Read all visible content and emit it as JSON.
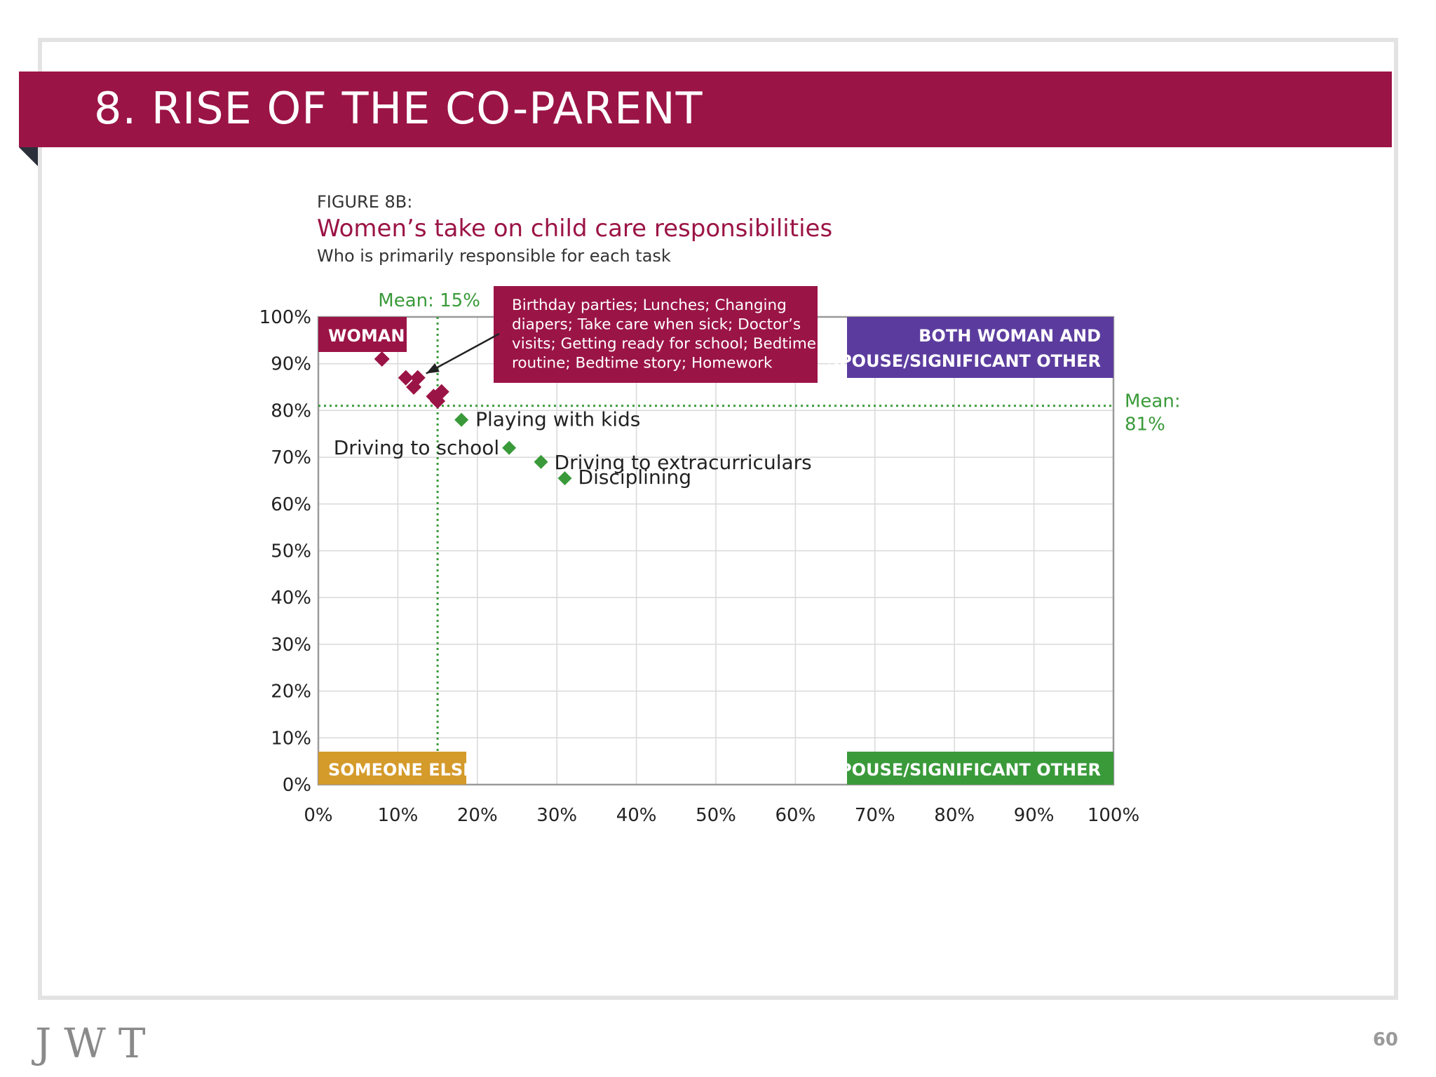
{
  "header": {
    "title": "8. RISE OF THE CO-PARENT"
  },
  "figure": {
    "label": "FIGURE 8B:",
    "title": "Women’s take on child care responsibilities",
    "subtitle": "Who is primarily responsible for each task"
  },
  "footer": {
    "brand": "JWT",
    "page_number": "60"
  },
  "colors": {
    "brand": "#9b1446",
    "green": "#3a9a3a",
    "purple": "#5b3c9e",
    "gold": "#d49a2a",
    "grid": "#d9d9d9"
  },
  "chart_data": {
    "type": "scatter",
    "x_ticks": [
      "0%",
      "10%",
      "20%",
      "30%",
      "40%",
      "50%",
      "60%",
      "70%",
      "80%",
      "90%",
      "100%"
    ],
    "y_ticks": [
      "0%",
      "10%",
      "20%",
      "30%",
      "40%",
      "50%",
      "60%",
      "70%",
      "80%",
      "90%",
      "100%"
    ],
    "xlim": [
      0,
      100
    ],
    "ylim": [
      0,
      100
    ],
    "grid": true,
    "mean_x": {
      "value": 15,
      "label": "Mean: 15%"
    },
    "mean_y": {
      "value": 81,
      "label_line1": "Mean:",
      "label_line2": "81%"
    },
    "quadrants": {
      "top_left": "WOMAN",
      "top_right_line1": "BOTH WOMAN AND",
      "top_right_line2": "SPOUSE/SIGNIFICANT OTHER",
      "bottom_left": "SOMEONE ELSE",
      "bottom_right": "SPOUSE/SIGNIFICANT OTHER"
    },
    "callout": {
      "lines": [
        "Birthday parties; Lunches; Changing",
        "diapers; Take care when sick; Doctor’s",
        "visits; Getting ready for school; Bedtime",
        "routine; Bedtime story; Homework"
      ]
    },
    "above_mean_points": [
      {
        "x": 8,
        "y": 91
      },
      {
        "x": 11,
        "y": 87
      },
      {
        "x": 12,
        "y": 85
      },
      {
        "x": 12.5,
        "y": 87
      },
      {
        "x": 14.5,
        "y": 83
      },
      {
        "x": 15,
        "y": 82
      },
      {
        "x": 15.5,
        "y": 84
      }
    ],
    "below_mean_points": [
      {
        "x": 18,
        "y": 78,
        "label": "Playing with kids"
      },
      {
        "x": 24,
        "y": 72,
        "label": "Driving to school"
      },
      {
        "x": 28,
        "y": 69,
        "label": "Driving to extracurriculars"
      },
      {
        "x": 31,
        "y": 65.5,
        "label": "Disciplining"
      }
    ]
  }
}
